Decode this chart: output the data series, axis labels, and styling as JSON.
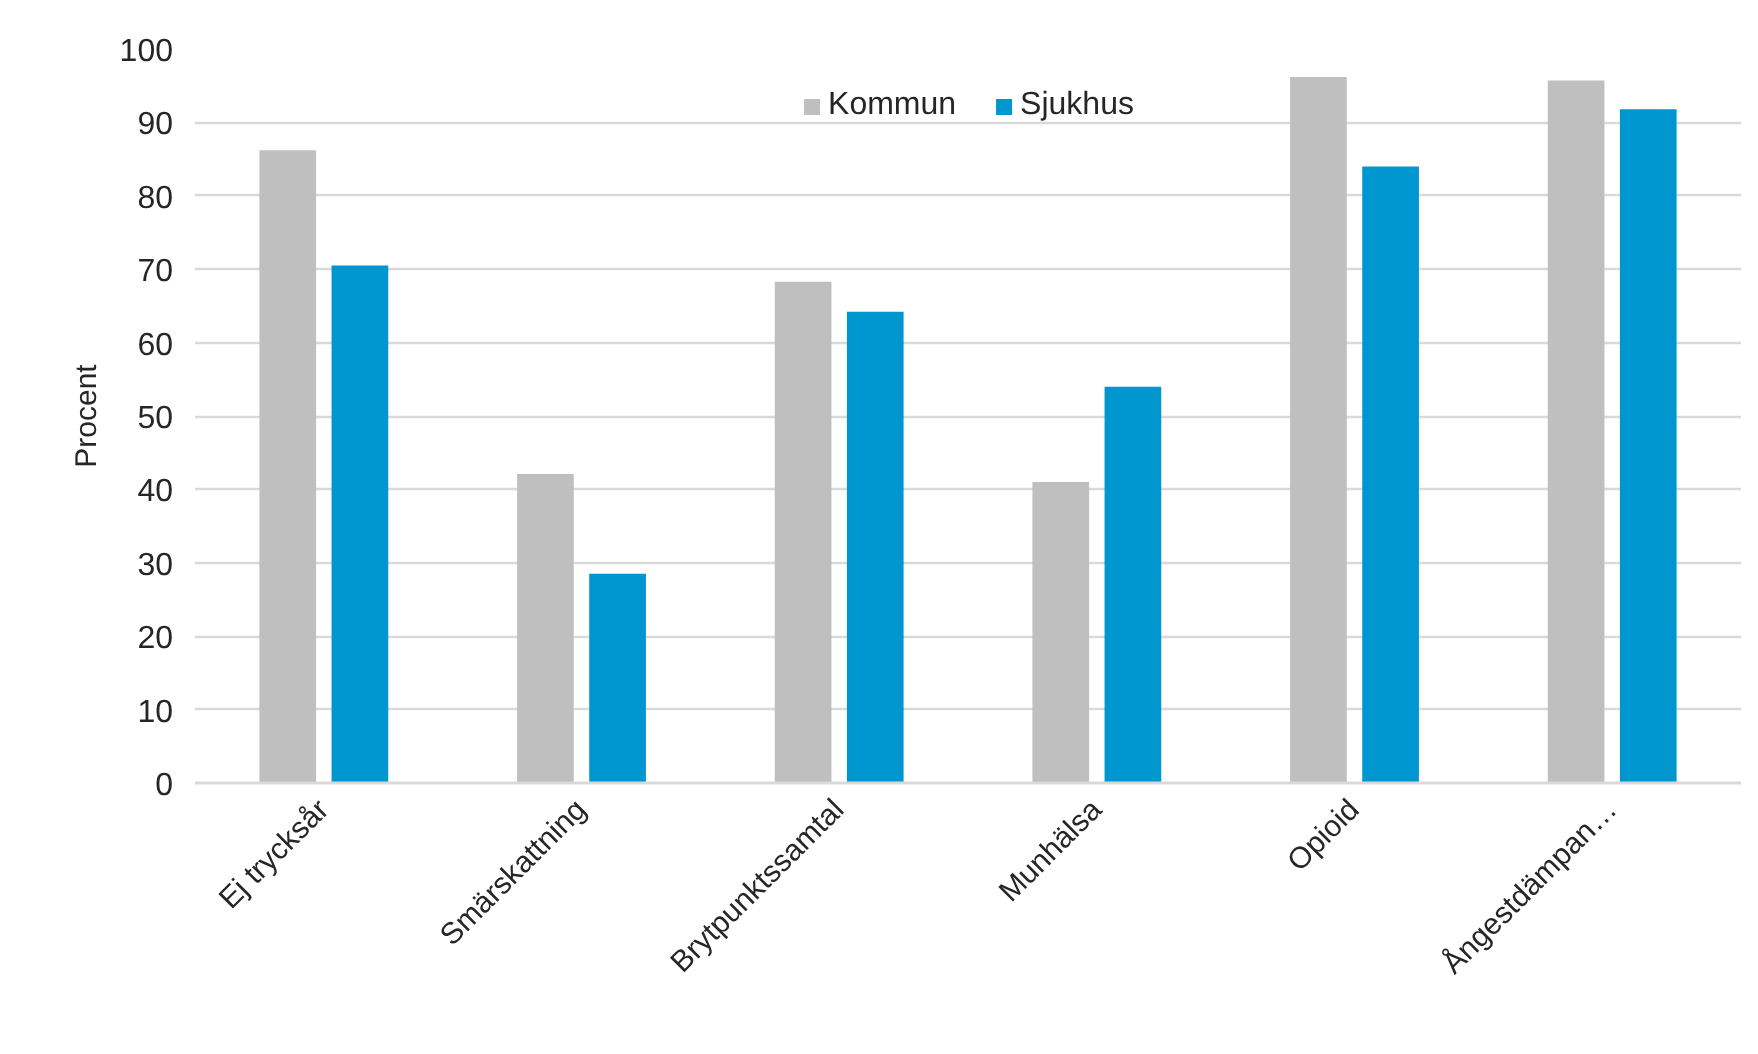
{
  "chart_data": {
    "type": "bar",
    "ylabel": "Procent",
    "categories": [
      "Ej trycksår",
      "Smärskattning",
      "Brytpunktssamtal",
      "Munhälsa",
      "Opioid",
      "Ångestdämpan…"
    ],
    "series": [
      {
        "name": "Kommun",
        "color": "#bfbfbf",
        "values": [
          86.2,
          42.1,
          68.3,
          41.0,
          96.2,
          95.7
        ]
      },
      {
        "name": "Sjukhus",
        "color": "#0096cf",
        "values": [
          70.5,
          28.5,
          64.2,
          54.0,
          84.0,
          91.8
        ]
      }
    ],
    "ylim": [
      0,
      100
    ],
    "yticks": [
      0,
      10,
      20,
      30,
      40,
      50,
      60,
      70,
      80,
      90,
      100
    ],
    "grid": "y",
    "legend": "top"
  }
}
